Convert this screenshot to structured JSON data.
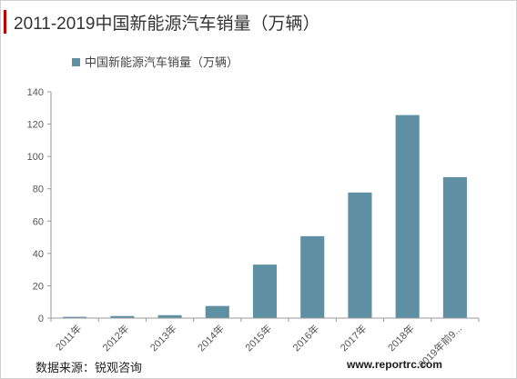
{
  "title": "2011-2019中国新能源汽车销量（万辆）",
  "source": "数据来源：锐观咨询",
  "watermark": "www.reportrc.com",
  "colors": {
    "bar": "#5f8fa3",
    "accent": "#c00000",
    "axis": "#999999"
  },
  "chart_data": {
    "type": "bar",
    "categories": [
      "2011年",
      "2012年",
      "2013年",
      "2014年",
      "2015年",
      "2016年",
      "2017年",
      "2018年",
      "2019年前9..."
    ],
    "series": [
      {
        "name": "中国新能源汽车销量（万辆）",
        "values": [
          0.8,
          1.3,
          1.8,
          7.5,
          33.1,
          50.7,
          77.7,
          125.6,
          87.2
        ]
      }
    ],
    "ylim": [
      0,
      140
    ],
    "yticks": [
      0,
      20,
      40,
      60,
      80,
      100,
      120,
      140
    ],
    "grid": false,
    "legend": "top-left"
  }
}
